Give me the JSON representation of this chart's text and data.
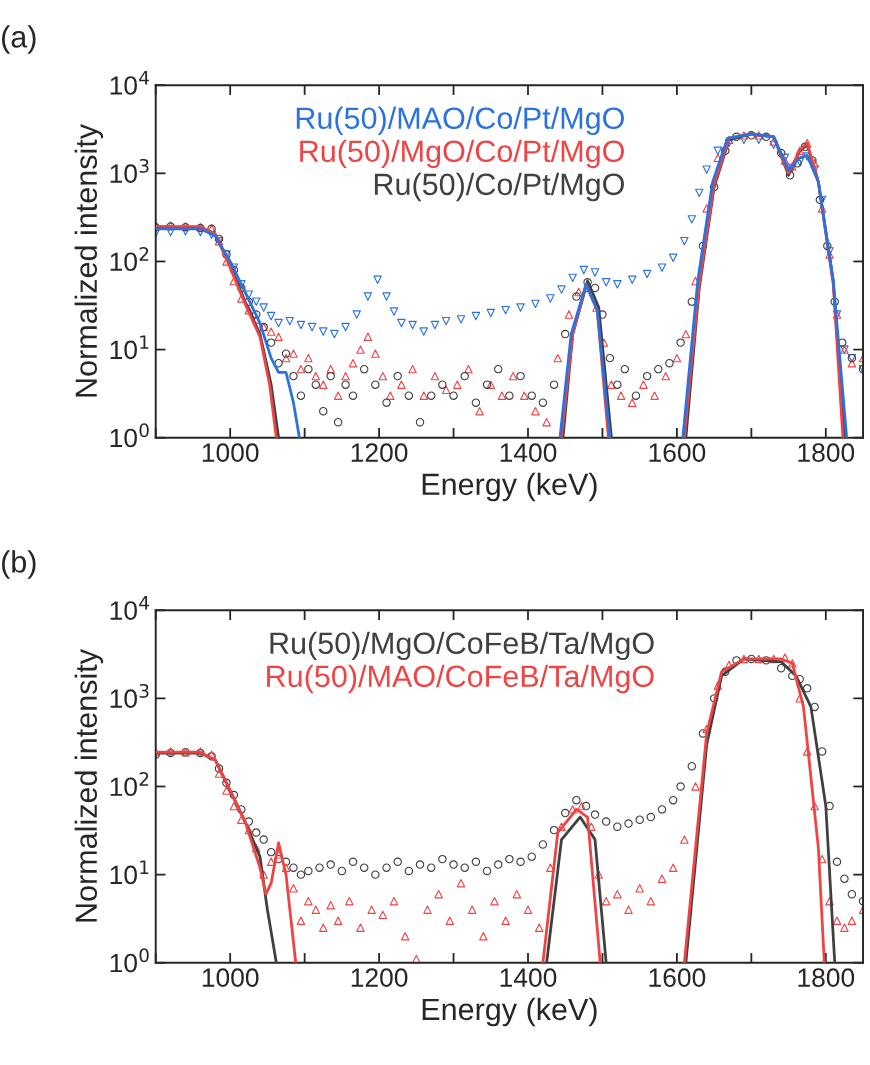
{
  "chart_data": [
    {
      "type": "scatter",
      "xlabel": "Energy (keV)",
      "ylabel": "Normalized intensity",
      "annotations": [
        "(a)"
      ],
      "log": "y",
      "legend": "top",
      "xlim": [
        900,
        1850
      ],
      "xticks": [
        {
          "value": 900,
          "label": null
        },
        1000,
        {
          "value": 1100,
          "label": null
        },
        1200,
        {
          "value": 1300,
          "label": null
        },
        1400,
        {
          "value": 1500,
          "label": null
        },
        1600,
        {
          "value": 1700,
          "label": null
        },
        1800
      ],
      "ylim": [
        1,
        10000
      ],
      "yticks": [
        {
          "value": 1,
          "label": "10$^{0}$"
        },
        {
          "value": 10,
          "label": "10$^{1}$"
        },
        {
          "value": 100,
          "label": "10$^{2}$"
        },
        {
          "value": 1000,
          "label": "10$^{3}$"
        },
        {
          "value": 10000,
          "label": "10$^{4}$"
        }
      ],
      "series": [
        {
          "name": "Ru(50)/MAO/Co/Pt/MgO",
          "marker": "triangle_down",
          "color": "#2a72e0",
          "x": [
            900,
            920,
            940,
            960,
            975,
            985,
            995,
            1005,
            1015,
            1025,
            1035,
            1045,
            1055,
            1065,
            1080,
            1095,
            1110,
            1125,
            1140,
            1155,
            1170,
            1185,
            1198,
            1210,
            1220,
            1230,
            1245,
            1260,
            1275,
            1290,
            1310,
            1330,
            1350,
            1370,
            1390,
            1410,
            1430,
            1445,
            1460,
            1475,
            1490,
            1505,
            1520,
            1540,
            1560,
            1580,
            1595,
            1610,
            1620,
            1630,
            1640,
            1655,
            1670,
            1690,
            1710,
            1730,
            1745,
            1755,
            1765,
            1775,
            1785,
            1795,
            1805,
            1815,
            1825,
            1835,
            1850
          ],
          "values": [
            210,
            215,
            220,
            215,
            200,
            170,
            120,
            85,
            55,
            42,
            35,
            30,
            24,
            20,
            21,
            19,
            18,
            16,
            15,
            18,
            25,
            40,
            62,
            40,
            27,
            20,
            19,
            16,
            19,
            21,
            22,
            24,
            26,
            28,
            30,
            33,
            38,
            48,
            65,
            80,
            75,
            58,
            55,
            62,
            72,
            85,
            110,
            170,
            300,
            600,
            1100,
            1800,
            2200,
            2400,
            2400,
            2100,
            1500,
            1150,
            1350,
            1550,
            1100,
            500,
            130,
            25,
            10,
            8,
            6
          ]
        },
        {
          "name": "Ru(50)/MgO/Co/Pt/MgO",
          "marker": "triangle",
          "color": "#f04444",
          "x": [
            900,
            920,
            940,
            960,
            975,
            985,
            995,
            1005,
            1015,
            1025,
            1035,
            1045,
            1055,
            1065,
            1075,
            1085,
            1095,
            1105,
            1115,
            1125,
            1135,
            1145,
            1155,
            1165,
            1175,
            1185,
            1195,
            1205,
            1215,
            1230,
            1245,
            1260,
            1275,
            1290,
            1305,
            1320,
            1335,
            1350,
            1365,
            1380,
            1395,
            1410,
            1425,
            1440,
            1455,
            1468,
            1480,
            1492,
            1502,
            1512,
            1525,
            1540,
            1555,
            1570,
            1585,
            1600,
            1612,
            1625,
            1640,
            1655,
            1670,
            1690,
            1710,
            1730,
            1745,
            1755,
            1765,
            1775,
            1785,
            1795,
            1805,
            1815,
            1825,
            1835,
            1850
          ],
          "values": [
            255,
            255,
            250,
            245,
            235,
            170,
            100,
            60,
            38,
            28,
            22,
            18,
            16,
            14,
            8,
            9,
            6,
            8,
            5,
            4,
            6,
            3,
            5,
            7,
            10,
            14,
            9,
            5,
            3,
            4,
            6,
            3,
            5,
            3.5,
            4,
            6,
            2,
            4,
            3,
            5,
            3,
            2,
            1.5,
            8,
            25,
            45,
            50,
            30,
            12,
            4,
            3,
            2.5,
            4,
            3,
            5,
            8,
            15,
            60,
            400,
            1500,
            2400,
            2700,
            2700,
            2300,
            1400,
            1200,
            1800,
            2200,
            1300,
            400,
            120,
            25,
            10,
            7,
            8
          ]
        },
        {
          "name": "Ru(50)/Co/Pt/MgO",
          "marker": "circle",
          "color": "#404040",
          "x": [
            900,
            920,
            940,
            960,
            975,
            985,
            995,
            1005,
            1015,
            1025,
            1035,
            1045,
            1055,
            1065,
            1075,
            1085,
            1095,
            1105,
            1115,
            1125,
            1135,
            1145,
            1155,
            1165,
            1180,
            1195,
            1210,
            1225,
            1240,
            1255,
            1270,
            1285,
            1300,
            1315,
            1330,
            1345,
            1360,
            1375,
            1390,
            1405,
            1420,
            1435,
            1450,
            1465,
            1480,
            1490,
            1500,
            1510,
            1520,
            1530,
            1545,
            1560,
            1575,
            1590,
            1605,
            1620,
            1635,
            1650,
            1665,
            1680,
            1700,
            1720,
            1740,
            1752,
            1762,
            1772,
            1782,
            1792,
            1802,
            1812,
            1822,
            1835,
            1850
          ],
          "values": [
            245,
            250,
            245,
            240,
            235,
            180,
            120,
            80,
            50,
            35,
            25,
            18,
            12,
            7,
            9,
            5,
            3,
            6,
            4,
            2,
            5,
            1.5,
            4,
            3,
            6,
            4,
            2.5,
            5,
            3,
            1.5,
            3,
            4,
            3,
            5,
            2.5,
            4,
            6,
            3,
            5,
            3,
            2.5,
            4,
            15,
            40,
            58,
            50,
            25,
            8,
            4,
            6,
            3,
            5,
            6,
            7,
            12,
            35,
            150,
            700,
            1800,
            2600,
            2700,
            2600,
            1700,
            950,
            1300,
            2000,
            1400,
            500,
            150,
            35,
            12,
            8,
            6
          ]
        },
        {
          "type": "line",
          "color": "#404040",
          "x": [
            900,
            960,
            980,
            1000,
            1020,
            1040,
            1055,
            1065,
            null,
            1447,
            1460,
            1480,
            1495,
            1512,
            null,
            1612,
            1630,
            1650,
            1670,
            1700,
            1730,
            1750,
            1765,
            1775,
            1790,
            1810,
            1825
          ],
          "values": [
            240,
            240,
            200,
            90,
            35,
            15,
            4,
            1,
            null,
            1,
            15,
            60,
            30,
            1,
            null,
            1,
            50,
            700,
            2400,
            2800,
            2600,
            950,
            1800,
            2100,
            800,
            60,
            1
          ]
        },
        {
          "type": "line",
          "color": "#f04444",
          "x": [
            900,
            960,
            980,
            1000,
            1020,
            1040,
            1053,
            1062,
            null,
            1445,
            1460,
            1478,
            1493,
            1508,
            null,
            1610,
            1630,
            1650,
            1670,
            1700,
            1730,
            1750,
            1765,
            1775,
            1790,
            1810,
            1823
          ],
          "values": [
            250,
            248,
            205,
            85,
            33,
            14,
            4,
            1,
            null,
            1,
            15,
            55,
            28,
            1,
            null,
            1,
            55,
            750,
            2500,
            2800,
            2600,
            1000,
            1850,
            2200,
            800,
            55,
            1
          ]
        },
        {
          "type": "line",
          "color": "#2a72e0",
          "x": [
            900,
            960,
            980,
            1000,
            1020,
            1040,
            1055,
            1065,
            1075,
            1085,
            1093,
            null,
            1443,
            1458,
            1478,
            1493,
            1510,
            null,
            1608,
            1628,
            1648,
            1668,
            1700,
            1730,
            1750,
            1765,
            1775,
            1790,
            1810,
            1828
          ],
          "values": [
            235,
            235,
            195,
            100,
            45,
            20,
            8,
            5.5,
            5.5,
            2.5,
            1,
            null,
            1,
            15,
            55,
            28,
            1,
            null,
            1,
            60,
            800,
            2500,
            2800,
            2600,
            1100,
            1500,
            1600,
            800,
            60,
            1
          ]
        }
      ]
    },
    {
      "type": "scatter",
      "xlabel": "Energy (keV)",
      "ylabel": "Normalized intensity",
      "annotations": [
        "(b)"
      ],
      "log": "y",
      "legend": "top",
      "xlim": [
        900,
        1850
      ],
      "xticks": [
        {
          "value": 900,
          "label": null
        },
        1000,
        {
          "value": 1100,
          "label": null
        },
        1200,
        {
          "value": 1300,
          "label": null
        },
        1400,
        {
          "value": 1500,
          "label": null
        },
        1600,
        {
          "value": 1700,
          "label": null
        },
        1800
      ],
      "ylim": [
        1,
        10000
      ],
      "yticks": [
        {
          "value": 1,
          "label": "10$^{0}$"
        },
        {
          "value": 10,
          "label": "10$^{1}$"
        },
        {
          "value": 100,
          "label": "10$^{2}$"
        },
        {
          "value": 1000,
          "label": "10$^{3}$"
        },
        {
          "value": 10000,
          "label": "10$^{4}$"
        }
      ],
      "series": [
        {
          "name": "Ru(50)/MgO/CoFeB/Ta/MgO",
          "marker": "circle",
          "color": "#404040",
          "x": [
            900,
            920,
            940,
            960,
            975,
            985,
            995,
            1005,
            1015,
            1025,
            1035,
            1045,
            1055,
            1065,
            1075,
            1085,
            1095,
            1105,
            1120,
            1135,
            1150,
            1165,
            1180,
            1195,
            1210,
            1225,
            1240,
            1255,
            1270,
            1285,
            1300,
            1315,
            1330,
            1345,
            1360,
            1375,
            1390,
            1405,
            1420,
            1435,
            1450,
            1465,
            1478,
            1490,
            1505,
            1520,
            1535,
            1550,
            1565,
            1580,
            1595,
            1605,
            1620,
            1635,
            1650,
            1665,
            1680,
            1700,
            1720,
            1740,
            1755,
            1765,
            1775,
            1785,
            1795,
            1805,
            1815,
            1825,
            1835,
            1850
          ],
          "values": [
            230,
            240,
            245,
            240,
            220,
            160,
            110,
            80,
            55,
            40,
            30,
            25,
            18,
            15,
            14,
            12,
            10,
            11,
            12,
            13,
            11,
            14,
            12,
            10,
            12,
            14,
            11,
            13,
            12,
            15,
            13,
            12,
            14,
            11,
            13,
            15,
            14,
            16,
            22,
            32,
            50,
            70,
            60,
            48,
            40,
            35,
            38,
            42,
            45,
            55,
            70,
            100,
            170,
            400,
            1000,
            2000,
            2700,
            2800,
            2700,
            2200,
            1800,
            1650,
            1300,
            800,
            250,
            60,
            14,
            9,
            6,
            5
          ]
        },
        {
          "name": "Ru(50)/MAO/CoFeB/Ta/MgO",
          "marker": "triangle",
          "color": "#f04444",
          "x": [
            900,
            920,
            940,
            960,
            975,
            985,
            995,
            1005,
            1015,
            1025,
            1035,
            1045,
            1055,
            1065,
            1075,
            1085,
            1095,
            1105,
            1115,
            1125,
            1135,
            1145,
            1160,
            1175,
            1190,
            1205,
            1220,
            1235,
            1250,
            1265,
            1280,
            1295,
            1310,
            1325,
            1340,
            1355,
            1370,
            1385,
            1400,
            1415,
            1430,
            1445,
            1460,
            1472,
            1485,
            1495,
            1505,
            1520,
            1535,
            1550,
            1565,
            1580,
            1595,
            1610,
            1625,
            1640,
            1655,
            1670,
            1690,
            1710,
            1730,
            1745,
            1755,
            1765,
            1775,
            1785,
            1795,
            1805,
            1815,
            1825,
            1835,
            1850
          ],
          "values": [
            245,
            250,
            245,
            250,
            230,
            140,
            90,
            60,
            42,
            32,
            20,
            10,
            14,
            17,
            12,
            7,
            3,
            5,
            4,
            2.5,
            4.5,
            3,
            5,
            2.5,
            4,
            3.5,
            5,
            2,
            1.1,
            4,
            6,
            3,
            8,
            4,
            2,
            5,
            3,
            6,
            4,
            2.5,
            12,
            35,
            55,
            60,
            35,
            10,
            5,
            6,
            4,
            7,
            5,
            9,
            12,
            25,
            100,
            450,
            1400,
            2400,
            2800,
            2800,
            2800,
            2900,
            2500,
            1000,
            250,
            60,
            15,
            5,
            3,
            2.5,
            3,
            4
          ]
        },
        {
          "type": "line",
          "color": "#404040",
          "x": [
            900,
            960,
            980,
            1000,
            1020,
            1040,
            1050,
            1062,
            null,
            1425,
            1445,
            1470,
            1490,
            1505,
            null,
            1612,
            1640,
            1660,
            1690,
            1740,
            1760,
            1780,
            1800,
            1812
          ],
          "values": [
            240,
            240,
            200,
            90,
            40,
            16,
            4,
            1,
            null,
            1,
            25,
            45,
            25,
            1,
            null,
            1,
            300,
            1800,
            2800,
            2600,
            1800,
            800,
            60,
            1
          ]
        },
        {
          "type": "line",
          "color": "#f04444",
          "x": [
            900,
            960,
            980,
            1000,
            1020,
            1040,
            1048,
            1055,
            1065,
            1075,
            1088,
            null,
            1420,
            1440,
            1465,
            1480,
            1497,
            null,
            1610,
            1640,
            1660,
            1690,
            1740,
            1755,
            1770,
            1790,
            1798
          ],
          "values": [
            245,
            245,
            200,
            90,
            40,
            12,
            6,
            8,
            23,
            10,
            1,
            null,
            1,
            30,
            55,
            45,
            1,
            null,
            1,
            400,
            2000,
            2800,
            2800,
            2500,
            800,
            20,
            1
          ]
        }
      ]
    }
  ]
}
